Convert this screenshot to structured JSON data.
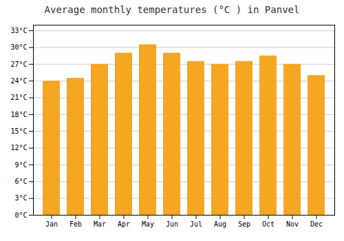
{
  "chart_data": {
    "type": "bar",
    "title": "Average monthly temperatures (°C ) in Panvel",
    "categories": [
      "Jan",
      "Feb",
      "Mar",
      "Apr",
      "May",
      "Jun",
      "Jul",
      "Aug",
      "Sep",
      "Oct",
      "Nov",
      "Dec"
    ],
    "values": [
      24,
      24.5,
      27,
      29,
      30.5,
      29,
      27.5,
      27,
      27.5,
      28.5,
      27,
      25
    ],
    "color": "#F5A623",
    "ylim": [
      0,
      34
    ],
    "yticks": [
      {
        "value": 0,
        "label": "0°C"
      },
      {
        "value": 3,
        "label": "3°C"
      },
      {
        "value": 6,
        "label": "6°C"
      },
      {
        "value": 9,
        "label": "9°C"
      },
      {
        "value": 12,
        "label": "12°C"
      },
      {
        "value": 15,
        "label": "15°C"
      },
      {
        "value": 18,
        "label": "18°C"
      },
      {
        "value": 21,
        "label": "21°C"
      },
      {
        "value": 24,
        "label": "24°C"
      },
      {
        "value": 27,
        "label": "27°C"
      },
      {
        "value": 30,
        "label": "30°C"
      },
      {
        "value": 33,
        "label": "33°C"
      }
    ],
    "grid": true
  }
}
